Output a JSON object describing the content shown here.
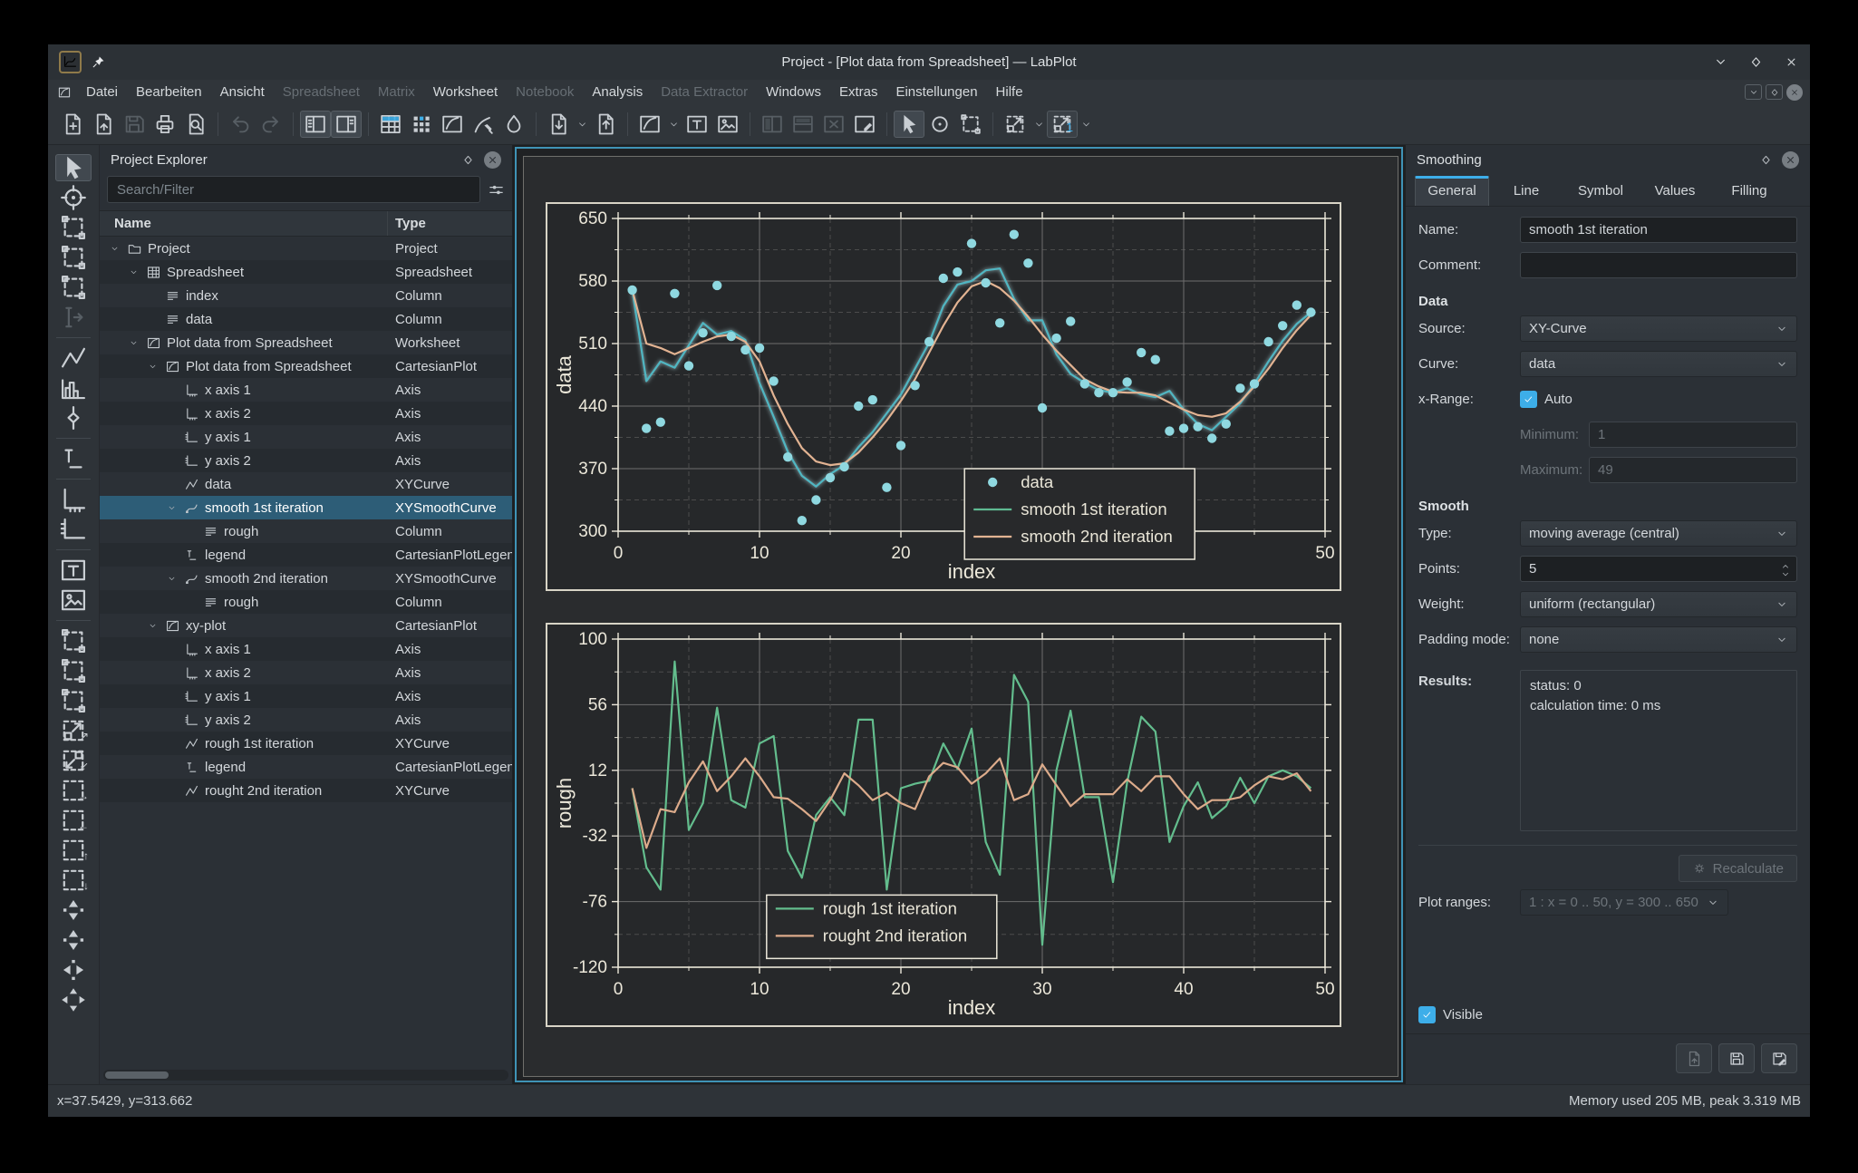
{
  "window": {
    "title": "Project - [Plot data from Spreadsheet] — LabPlot",
    "controls": [
      "shade",
      "maximize",
      "close"
    ]
  },
  "menu": {
    "items": [
      {
        "label": "Datei",
        "enabled": true
      },
      {
        "label": "Bearbeiten",
        "enabled": true
      },
      {
        "label": "Ansicht",
        "enabled": true
      },
      {
        "label": "Spreadsheet",
        "enabled": false
      },
      {
        "label": "Matrix",
        "enabled": false
      },
      {
        "label": "Worksheet",
        "enabled": true
      },
      {
        "label": "Notebook",
        "enabled": false
      },
      {
        "label": "Analysis",
        "enabled": true
      },
      {
        "label": "Data Extractor",
        "enabled": false
      },
      {
        "label": "Windows",
        "enabled": true
      },
      {
        "label": "Extras",
        "enabled": true
      },
      {
        "label": "Einstellungen",
        "enabled": true
      },
      {
        "label": "Hilfe",
        "enabled": true
      }
    ],
    "mini_controls": [
      "shade",
      "restore",
      "close"
    ]
  },
  "toolbar": {
    "groups": [
      [
        {
          "icon": "page-plus",
          "name": "new-project-button"
        },
        {
          "icon": "page-open",
          "name": "open-project-button"
        },
        {
          "icon": "floppy",
          "name": "save-button",
          "disabled": true
        },
        {
          "icon": "printer",
          "name": "print-button"
        },
        {
          "icon": "page-zoom",
          "name": "print-preview-button"
        }
      ],
      [
        {
          "icon": "undo",
          "name": "undo-button",
          "disabled": true
        },
        {
          "icon": "redo",
          "name": "redo-button",
          "disabled": true
        }
      ],
      [
        {
          "icon": "panel-left",
          "name": "toggle-project-explorer-button",
          "pressed": true
        },
        {
          "icon": "panel-right",
          "name": "toggle-properties-explorer-button",
          "pressed": true
        }
      ],
      [
        {
          "icon": "grid-new",
          "name": "new-spreadsheet-button"
        },
        {
          "icon": "matrix",
          "name": "new-matrix-button"
        },
        {
          "icon": "frame-curve",
          "name": "new-worksheet-button"
        },
        {
          "icon": "dropper",
          "name": "new-data-extractor-button"
        },
        {
          "icon": "ink",
          "name": "color-theme-button"
        }
      ],
      [
        {
          "icon": "page-export",
          "name": "export-button",
          "chevron": true
        },
        {
          "icon": "page-import",
          "name": "import-button"
        }
      ],
      [
        {
          "icon": "frame-curve",
          "name": "add-plot-button",
          "chevron": true
        },
        {
          "icon": "tframe",
          "name": "add-text-label-button"
        },
        {
          "icon": "image",
          "name": "add-image-button"
        }
      ],
      [
        {
          "icon": "split-h",
          "name": "split-view-horizontal-button",
          "disabled": true
        },
        {
          "icon": "split-v",
          "name": "split-view-vertical-button",
          "disabled": true
        },
        {
          "icon": "close-view",
          "name": "close-split-view-button",
          "disabled": true
        },
        {
          "icon": "edit-layout",
          "name": "edit-layout-button"
        }
      ],
      [
        {
          "icon": "cursor",
          "name": "select-mode-button",
          "pressed": true
        },
        {
          "icon": "mouse",
          "name": "navigate-mode-button"
        },
        {
          "icon": "dashed-handles",
          "name": "zoom-select-mode-button"
        }
      ],
      [
        {
          "icon": "dashed-zoom",
          "name": "magnification-button",
          "chevron": true
        },
        {
          "icon": "dashed-zoom",
          "name": "plot-range-button",
          "chevron": true,
          "raised": true,
          "overlay": "1",
          "overlay_blue": true
        }
      ]
    ]
  },
  "left_toolbar": {
    "buttons": [
      {
        "icon": "cursor",
        "name": "ws-select-mode-button",
        "pressed": true
      },
      {
        "icon": "crosshair",
        "name": "crosshair-mode-button"
      },
      {
        "icon": "dashed-handles",
        "name": "zoom-select-button"
      },
      {
        "icon": "dashed-handles",
        "name": "zoom-x-select-button"
      },
      {
        "icon": "dashed-handles",
        "name": "zoom-y-select-button"
      },
      {
        "icon": "cursor-line",
        "name": "cursor-tool-button",
        "disabled": true,
        "sep_after": true
      },
      {
        "icon": "curve",
        "name": "add-xy-curve-button"
      },
      {
        "icon": "hist",
        "name": "add-histogram-button"
      },
      {
        "icon": "boxplot",
        "name": "add-boxplot-button",
        "sep_after": true
      },
      {
        "icon": "legend",
        "name": "add-legend-button",
        "sep_after": true
      },
      {
        "icon": "axis-x",
        "name": "add-x-axis-button"
      },
      {
        "icon": "axis-y",
        "name": "add-y-axis-button",
        "sep_after": true
      },
      {
        "icon": "tframe",
        "name": "add-text-label-button"
      },
      {
        "icon": "image",
        "name": "add-image-button",
        "sep_after": true
      },
      {
        "icon": "dashed-handles",
        "name": "zoom-region-button"
      },
      {
        "icon": "dashed-handles",
        "name": "zoom-x-region-button"
      },
      {
        "icon": "dashed-handles",
        "name": "zoom-y-region-button"
      },
      {
        "icon": "dashed-zoom",
        "name": "zoom-in-button",
        "overlay": "↗"
      },
      {
        "icon": "dashed-zoom-in",
        "name": "zoom-out-button",
        "overlay": "↙"
      },
      {
        "icon": "dashed-plain",
        "name": "shift-right-button",
        "overlay": "→"
      },
      {
        "icon": "dashed-plain",
        "name": "shift-left-button",
        "overlay": "←"
      },
      {
        "icon": "dashed-plain",
        "name": "shift-up-button",
        "overlay": "↑"
      },
      {
        "icon": "dashed-plain",
        "name": "shift-down-button",
        "overlay": "↓"
      },
      {
        "icon": "cluster-v",
        "name": "auto-scale-y-button"
      },
      {
        "icon": "cluster-v",
        "name": "scale-y-button"
      },
      {
        "icon": "cluster-h",
        "name": "auto-scale-x-button"
      },
      {
        "icon": "cluster-4",
        "name": "auto-scale-button"
      }
    ]
  },
  "project_explorer": {
    "title": "Project Explorer",
    "search_placeholder": "Search/Filter",
    "columns": [
      "Name",
      "Type"
    ],
    "rows": [
      {
        "level": 0,
        "expander": true,
        "icon": "folder",
        "name": "Project",
        "type": "Project"
      },
      {
        "level": 1,
        "expander": true,
        "icon": "spreadsheet",
        "name": "Spreadsheet",
        "type": "Spreadsheet"
      },
      {
        "level": 2,
        "expander": false,
        "icon": "column",
        "name": "index",
        "type": "Column"
      },
      {
        "level": 2,
        "expander": false,
        "icon": "column",
        "name": "data",
        "type": "Column"
      },
      {
        "level": 1,
        "expander": true,
        "icon": "worksheet",
        "name": "Plot data from Spreadsheet",
        "type": "Worksheet"
      },
      {
        "level": 2,
        "expander": true,
        "icon": "plot",
        "name": "Plot data from Spreadsheet",
        "type": "CartesianPlot"
      },
      {
        "level": 3,
        "expander": false,
        "icon": "axis-x",
        "name": "x axis 1",
        "type": "Axis"
      },
      {
        "level": 3,
        "expander": false,
        "icon": "axis-x",
        "name": "x axis 2",
        "type": "Axis"
      },
      {
        "level": 3,
        "expander": false,
        "icon": "axis-y",
        "name": "y axis 1",
        "type": "Axis"
      },
      {
        "level": 3,
        "expander": false,
        "icon": "axis-y",
        "name": "y axis 2",
        "type": "Axis"
      },
      {
        "level": 3,
        "expander": false,
        "icon": "curve",
        "name": "data",
        "type": "XYCurve"
      },
      {
        "level": 3,
        "expander": true,
        "icon": "smooth",
        "name": "smooth 1st iteration",
        "type": "XYSmoothCurve",
        "selected": true
      },
      {
        "level": 4,
        "expander": false,
        "icon": "column",
        "name": "rough",
        "type": "Column"
      },
      {
        "level": 3,
        "expander": false,
        "icon": "legend",
        "name": "legend",
        "type": "CartesianPlotLegend"
      },
      {
        "level": 3,
        "expander": true,
        "icon": "smooth",
        "name": "smooth 2nd iteration",
        "type": "XYSmoothCurve"
      },
      {
        "level": 4,
        "expander": false,
        "icon": "column",
        "name": "rough",
        "type": "Column"
      },
      {
        "level": 2,
        "expander": true,
        "icon": "plot",
        "name": "xy-plot",
        "type": "CartesianPlot"
      },
      {
        "level": 3,
        "expander": false,
        "icon": "axis-x",
        "name": "x axis 1",
        "type": "Axis"
      },
      {
        "level": 3,
        "expander": false,
        "icon": "axis-x",
        "name": "x axis 2",
        "type": "Axis"
      },
      {
        "level": 3,
        "expander": false,
        "icon": "axis-y",
        "name": "y axis 1",
        "type": "Axis"
      },
      {
        "level": 3,
        "expander": false,
        "icon": "axis-y",
        "name": "y axis 2",
        "type": "Axis"
      },
      {
        "level": 3,
        "expander": false,
        "icon": "curve",
        "name": "rough 1st iteration",
        "type": "XYCurve"
      },
      {
        "level": 3,
        "expander": false,
        "icon": "legend",
        "name": "legend",
        "type": "CartesianPlotLegend"
      },
      {
        "level": 3,
        "expander": false,
        "icon": "curve",
        "name": "rought 2nd iteration",
        "type": "XYCurve"
      }
    ]
  },
  "smoothing_panel": {
    "title": "Smoothing",
    "tabs": [
      "General",
      "Line",
      "Symbol",
      "Values",
      "Filling"
    ],
    "active_tab": "General",
    "name_label": "Name:",
    "name_value": "smooth 1st iteration",
    "comment_label": "Comment:",
    "comment_value": "",
    "data_section": "Data",
    "source_label": "Source:",
    "source_value": "XY-Curve",
    "curve_label": "Curve:",
    "curve_value": "data",
    "xrange_label": "x-Range:",
    "auto_label": "Auto",
    "auto_checked": true,
    "minimum_label": "Minimum:",
    "minimum_value": "1",
    "maximum_label": "Maximum:",
    "maximum_value": "49",
    "smooth_section": "Smooth",
    "type_label": "Type:",
    "type_value": "moving average (central)",
    "points_label": "Points:",
    "points_value": "5",
    "weight_label": "Weight:",
    "weight_value": "uniform (rectangular)",
    "padding_label": "Padding mode:",
    "padding_value": "none",
    "results_label": "Results:",
    "results_status": "status: 0",
    "results_time": "calculation time: 0 ms",
    "recalculate_label": "Recalculate",
    "plot_ranges_label": "Plot ranges:",
    "plot_ranges_value": "1 : x = 0 .. 50, y = 300 .. 650",
    "visible_label": "Visible",
    "visible_checked": true
  },
  "status_bar": {
    "left": "x=37.5429, y=313.662",
    "right": "Memory used 205 MB, peak 3.319 MB"
  },
  "colors": {
    "accent": "#3daee9",
    "selection": "#2d5d77",
    "plot_frame": "#d8d4c6",
    "axis_text": "#e9e5d7",
    "data_points": "#8fd8e0",
    "smooth1_line": "#4fb6c2",
    "smooth1_legend": "#5fba92",
    "smooth2_line": "#e2b392",
    "rough1_line": "#63bd8d",
    "rough2_line": "#dcab8b"
  },
  "chart_data": [
    {
      "type": "line",
      "container": "top",
      "title": "",
      "xlabel": "index",
      "ylabel": "data",
      "xlim": [
        0,
        50
      ],
      "ylim": [
        300,
        650
      ],
      "xticks": [
        0,
        10,
        20,
        30,
        40,
        50
      ],
      "yticks": [
        300,
        370,
        440,
        510,
        580,
        650
      ],
      "grid": true,
      "x_min": 1,
      "x_step": 1,
      "legend": {
        "fx": 0.49,
        "fy": 0.8,
        "entries": [
          "data",
          "smooth 1st iteration",
          "smooth 2nd iteration"
        ]
      },
      "series": [
        {
          "name": "smooth 1st iteration",
          "style": "line",
          "color": "#4fb6c2",
          "legend_color": "#5fba92",
          "highlighted": true,
          "values": [
            570,
            468,
            490,
            483,
            508,
            533,
            520,
            524,
            514,
            466,
            428,
            389,
            362,
            350,
            364,
            374,
            394,
            411,
            432,
            453,
            482,
            511,
            552,
            576,
            580,
            592,
            594,
            560,
            536,
            536,
            498,
            476,
            466,
            458,
            455,
            460,
            453,
            450,
            457,
            436,
            420,
            413,
            428,
            443,
            465,
            490,
            513,
            532,
            545
          ]
        },
        {
          "name": "smooth 2nd iteration",
          "style": "line",
          "color": "#e2b392",
          "values": [
            570,
            510,
            505,
            498,
            505,
            512,
            518,
            520,
            512,
            490,
            452,
            420,
            393,
            378,
            374,
            376,
            388,
            405,
            424,
            446,
            470,
            500,
            530,
            556,
            574,
            580,
            572,
            558,
            540,
            520,
            502,
            486,
            470,
            462,
            456,
            455,
            455,
            452,
            444,
            436,
            430,
            428,
            432,
            445,
            462,
            482,
            505,
            525,
            542
          ]
        },
        {
          "name": "data",
          "style": "scatter",
          "color": "#8fd8e0",
          "values": [
            570,
            415,
            422,
            566,
            485,
            522,
            575,
            518,
            503,
            505,
            468,
            383,
            312,
            335,
            360,
            372,
            440,
            447,
            349,
            396,
            463,
            512,
            583,
            590,
            622,
            578,
            533,
            632,
            600,
            438,
            516,
            535,
            465,
            455,
            455,
            467,
            500,
            492,
            412,
            415,
            417,
            404,
            420,
            460,
            465,
            512,
            530,
            553,
            545
          ]
        }
      ],
      "legend_order": [
        "data",
        "smooth 1st iteration",
        "smooth 2nd iteration"
      ]
    },
    {
      "type": "line",
      "container": "bottom",
      "title": "",
      "xlabel": "index",
      "ylabel": "rough",
      "xlim": [
        0,
        50
      ],
      "ylim": [
        -120,
        100
      ],
      "xticks": [
        0,
        10,
        20,
        30,
        40,
        50
      ],
      "yticks": [
        -120,
        -76,
        -32,
        12,
        56,
        100
      ],
      "grid": true,
      "x_min": 1,
      "x_step": 1,
      "legend": {
        "fx": 0.21,
        "fy": 0.78,
        "entries": [
          "rough 1st iteration",
          "rought 2nd iteration"
        ]
      },
      "series": [
        {
          "name": "rough 1st iteration",
          "style": "line",
          "color": "#63bd8d",
          "values": [
            0,
            -53,
            -68,
            85,
            -28,
            -10,
            54,
            -8,
            -13,
            30,
            35,
            -42,
            -60,
            -18,
            -6,
            -18,
            46,
            46,
            -68,
            0,
            3,
            5,
            30,
            13,
            40,
            -36,
            -58,
            76,
            58,
            -105,
            12,
            52,
            -6,
            -6,
            -63,
            4,
            48,
            38,
            -36,
            -12,
            4,
            -20,
            -12,
            7,
            -10,
            8,
            12,
            8,
            0
          ]
        },
        {
          "name": "rought 2nd iteration",
          "style": "line",
          "color": "#dcab8b",
          "values": [
            0,
            -40,
            -14,
            -16,
            4,
            18,
            -2,
            8,
            20,
            8,
            -6,
            -7,
            -14,
            -22,
            -8,
            10,
            2,
            -8,
            -3,
            -10,
            -14,
            8,
            17,
            14,
            3,
            10,
            20,
            -8,
            -4,
            16,
            2,
            -12,
            -4,
            -4,
            -4,
            6,
            -2,
            8,
            8,
            -4,
            -14,
            -8,
            -8,
            -6,
            2,
            8,
            6,
            10,
            -2
          ]
        }
      ],
      "legend_order": [
        "rough 1st iteration",
        "rought 2nd iteration"
      ]
    }
  ]
}
